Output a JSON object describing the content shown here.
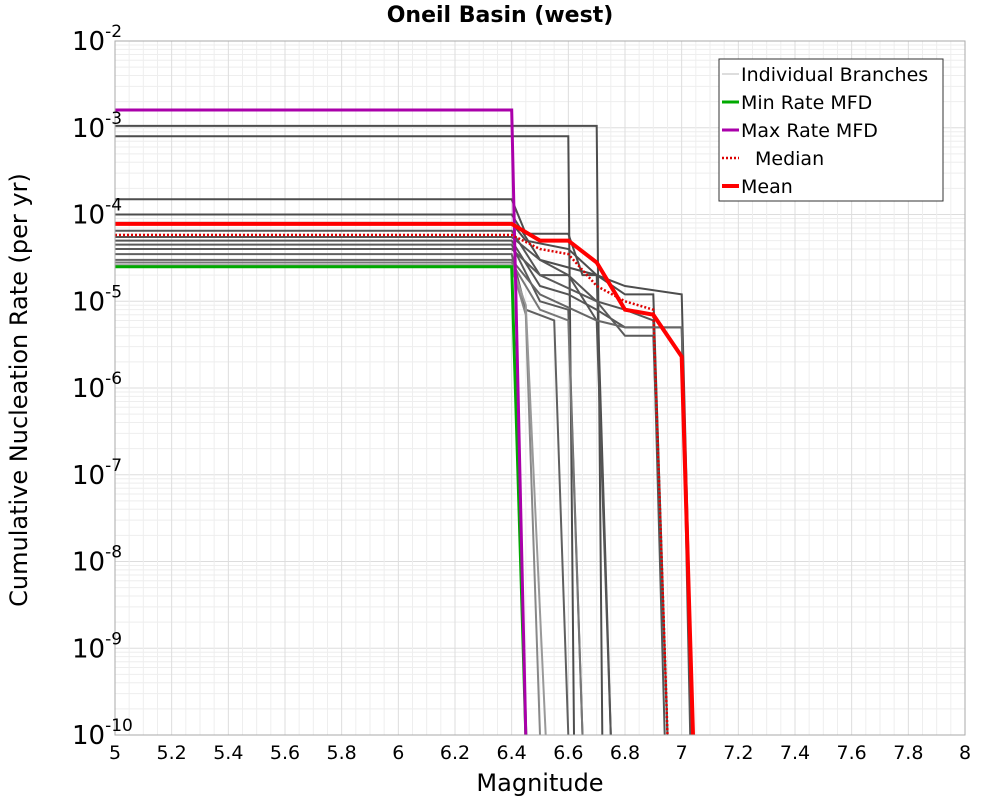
{
  "chart_data": {
    "type": "line",
    "title": "Oneil Basin (west)",
    "xlabel": "Magnitude",
    "ylabel": "Cumulative Nucleation Rate (per yr)",
    "xlim": [
      5,
      8
    ],
    "ylim": [
      1e-10,
      0.01
    ],
    "yscale": "log",
    "grid": true,
    "legend_position": "top-right",
    "x_ticks": [
      "5",
      "5.2",
      "5.4",
      "5.6",
      "5.8",
      "6",
      "6.2",
      "6.4",
      "6.6",
      "6.8",
      "7",
      "7.2",
      "7.4",
      "7.6",
      "7.8",
      "8"
    ],
    "y_ticks": [
      {
        "base": "10",
        "exp": "-2"
      },
      {
        "base": "10",
        "exp": "-3"
      },
      {
        "base": "10",
        "exp": "-4"
      },
      {
        "base": "10",
        "exp": "-5"
      },
      {
        "base": "10",
        "exp": "-6"
      },
      {
        "base": "10",
        "exp": "-7"
      },
      {
        "base": "10",
        "exp": "-8"
      },
      {
        "base": "10",
        "exp": "-9"
      },
      {
        "base": "10",
        "exp": "-10"
      }
    ],
    "legend": [
      {
        "label": "Individual Branches",
        "color": "#bbbbbb",
        "style": "solid-thin"
      },
      {
        "label": "Min Rate MFD",
        "color": "#00aa00",
        "style": "solid"
      },
      {
        "label": "Max Rate MFD",
        "color": "#aa00aa",
        "style": "solid"
      },
      {
        "label": "Median",
        "color": "#dd0000",
        "style": "dotted"
      },
      {
        "label": "Mean",
        "color": "#ff0000",
        "style": "solid-thick"
      }
    ],
    "series": [
      {
        "name": "Individual Branches",
        "color": "#4d4d4d",
        "x": [
          5.0,
          6.7,
          6.72
        ],
        "y": [
          0.00105,
          0.00105,
          1e-10
        ]
      },
      {
        "name": "Individual Branches",
        "color": "#4d4d4d",
        "x": [
          5.0,
          6.6,
          6.62
        ],
        "y": [
          0.0008,
          0.0008,
          1e-10
        ]
      },
      {
        "name": "Individual Branches",
        "color": "#4d4d4d",
        "x": [
          5.0,
          6.4,
          6.45,
          6.6,
          6.65,
          6.7,
          6.75
        ],
        "y": [
          0.00015,
          0.00015,
          6e-05,
          6e-05,
          2e-05,
          2e-05,
          1e-10
        ]
      },
      {
        "name": "Individual Branches",
        "color": "#4d4d4d",
        "x": [
          5.0,
          6.4,
          6.5,
          6.7,
          6.8,
          6.9,
          6.95
        ],
        "y": [
          0.0001,
          0.0001,
          3e-05,
          2e-05,
          1.2e-05,
          1.2e-05,
          1e-10
        ]
      },
      {
        "name": "Individual Branches",
        "color": "#4d4d4d",
        "x": [
          5.0,
          6.4,
          6.45,
          6.6,
          6.7,
          6.8,
          7.0,
          7.04
        ],
        "y": [
          8e-05,
          8e-05,
          5e-05,
          4e-05,
          2e-05,
          1.5e-05,
          1.2e-05,
          1e-10
        ]
      },
      {
        "name": "Individual Branches",
        "color": "#555555",
        "x": [
          5.0,
          6.4,
          6.5,
          6.6,
          6.7,
          6.8,
          6.9,
          6.94
        ],
        "y": [
          6.5e-05,
          6.5e-05,
          2e-05,
          2e-05,
          1e-05,
          8e-06,
          6e-06,
          1e-10
        ]
      },
      {
        "name": "Individual Branches",
        "color": "#555555",
        "x": [
          5.0,
          6.4,
          6.5,
          6.6,
          6.7,
          6.75
        ],
        "y": [
          5.5e-05,
          5.5e-05,
          3e-05,
          2e-05,
          6e-06,
          1e-10
        ]
      },
      {
        "name": "Individual Branches",
        "color": "#555555",
        "x": [
          5.0,
          6.4,
          6.5,
          6.6,
          6.7,
          6.8,
          7.0,
          7.03
        ],
        "y": [
          5e-05,
          5e-05,
          1.5e-05,
          1.2e-05,
          8e-06,
          5e-06,
          5e-06,
          1e-10
        ]
      },
      {
        "name": "Individual Branches",
        "color": "#5a5a5a",
        "x": [
          5.0,
          6.4,
          6.5,
          6.6,
          6.65
        ],
        "y": [
          4.5e-05,
          4.5e-05,
          1e-05,
          8e-06,
          1e-10
        ]
      },
      {
        "name": "Individual Branches",
        "color": "#5a5a5a",
        "x": [
          5.0,
          6.4,
          6.5,
          6.7,
          6.8,
          6.9,
          6.95
        ],
        "y": [
          4e-05,
          4e-05,
          2e-05,
          1e-05,
          4e-06,
          4e-06,
          1e-10
        ]
      },
      {
        "name": "Individual Branches",
        "color": "#606060",
        "x": [
          5.0,
          6.4,
          6.45,
          6.55,
          6.6
        ],
        "y": [
          3.5e-05,
          3.5e-05,
          8e-06,
          6e-06,
          1e-10
        ]
      },
      {
        "name": "Individual Branches",
        "color": "#666666",
        "x": [
          5.0,
          6.4,
          6.5,
          6.7,
          6.8,
          7.0,
          7.04
        ],
        "y": [
          3e-05,
          3e-05,
          1.2e-05,
          6e-06,
          5e-06,
          5e-06,
          1e-10
        ]
      },
      {
        "name": "Individual Branches",
        "color": "#777777",
        "x": [
          5.0,
          6.4,
          6.5,
          6.6,
          6.65
        ],
        "y": [
          2.8e-05,
          2.8e-05,
          8e-06,
          6e-06,
          1e-10
        ]
      },
      {
        "name": "Individual Branches",
        "color": "#888888",
        "x": [
          5.0,
          6.4,
          6.45,
          6.5
        ],
        "y": [
          2.5e-05,
          2.5e-05,
          7e-06,
          1e-10
        ]
      },
      {
        "name": "Individual Branches",
        "color": "#999999",
        "x": [
          5.0,
          6.4,
          6.45,
          6.52
        ],
        "y": [
          2.6e-05,
          2.6e-05,
          9e-06,
          1e-10
        ]
      },
      {
        "name": "Min Rate MFD",
        "color": "#00aa00",
        "x": [
          5.0,
          6.4,
          6.45
        ],
        "y": [
          2.5e-05,
          2.5e-05,
          1e-10
        ]
      },
      {
        "name": "Max Rate MFD",
        "color": "#aa00aa",
        "x": [
          5.0,
          6.4,
          6.45
        ],
        "y": [
          0.0016,
          0.0016,
          1e-10
        ]
      },
      {
        "name": "Median",
        "color": "#dd0000",
        "x": [
          5.0,
          6.4,
          6.5,
          6.6,
          6.7,
          6.8,
          6.9,
          6.95
        ],
        "y": [
          5.8e-05,
          5.8e-05,
          4e-05,
          3.5e-05,
          1.5e-05,
          1e-05,
          8e-06,
          1e-10
        ]
      },
      {
        "name": "Mean",
        "color": "#ff0000",
        "x": [
          5.0,
          6.4,
          6.5,
          6.6,
          6.7,
          6.8,
          6.9,
          7.0,
          7.04
        ],
        "y": [
          7.8e-05,
          7.8e-05,
          5e-05,
          5e-05,
          2.8e-05,
          8e-06,
          7e-06,
          2.3e-06,
          1e-10
        ]
      }
    ]
  }
}
